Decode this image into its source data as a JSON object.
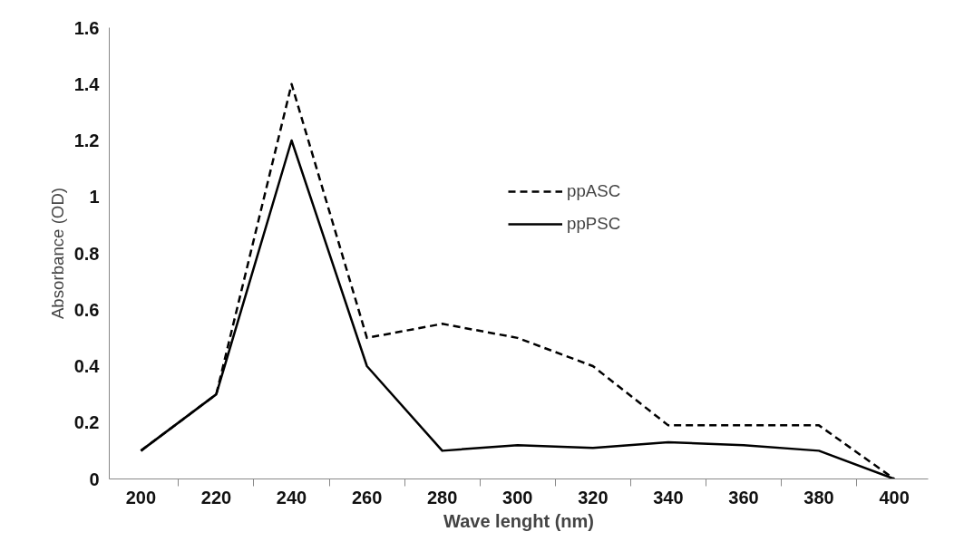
{
  "chart_data": {
    "type": "line",
    "xlabel": "Wave lenght (nm)",
    "ylabel": "Absorbance (OD)",
    "categories": [
      "200",
      "220",
      "240",
      "260",
      "280",
      "300",
      "320",
      "340",
      "360",
      "380",
      "400"
    ],
    "series": [
      {
        "name": "ppASC",
        "color": "#000000",
        "line_style": "dashed",
        "values": [
          0.1,
          0.3,
          1.4,
          0.5,
          0.55,
          0.5,
          0.4,
          0.19,
          0.19,
          0.19,
          0
        ]
      },
      {
        "name": "ppPSC",
        "color": "#000000",
        "line_style": "solid",
        "values": [
          0.1,
          0.3,
          1.2,
          0.4,
          0.1,
          0.12,
          0.11,
          0.13,
          0.12,
          0.1,
          0
        ]
      }
    ],
    "ylim": [
      0,
      1.6
    ],
    "yticks": [
      0,
      0.2,
      0.4,
      0.6,
      0.8,
      1,
      1.2,
      1.4,
      1.6
    ],
    "grid": false,
    "legend": "top right",
    "marker": "none"
  }
}
